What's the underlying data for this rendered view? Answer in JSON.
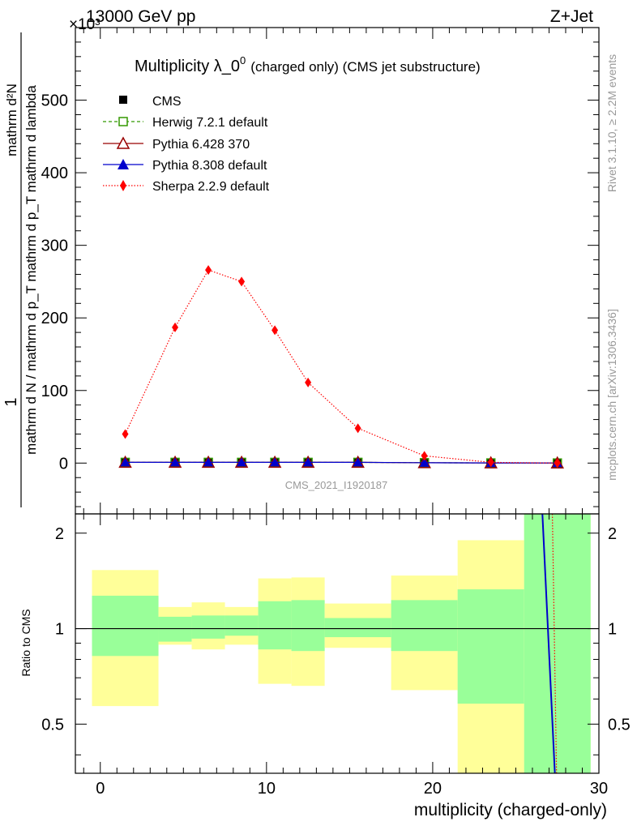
{
  "header": {
    "left": "13000 GeV pp",
    "right": "Z+Jet",
    "exponent": "×10³"
  },
  "title": {
    "main": "Multiplicity λ_0",
    "sup": "0",
    "sub": "(charged only) (CMS jet substructure)"
  },
  "side_labels": {
    "rivet": "Rivet 3.1.10, ≥ 2.2M events",
    "mcplots": "mcplots.cern.ch [arXiv:1306.3436]"
  },
  "watermark": "CMS_2021_I1920187",
  "axes": {
    "y_label_numerator": "1",
    "y_label_denominator": "mathrm d N / mathrm d p_T mathrm d p_T mathrm d lambda",
    "y_label_right": "mathrm d²N",
    "ratio_label": "Ratio to CMS",
    "x_label": "multiplicity (charged-only)"
  },
  "colors": {
    "herwig": "#339900",
    "pythia6": "#990000",
    "pythia8": "#0000cc",
    "sherpa": "#ff0000",
    "band_inner": "#99ff99",
    "band_outer": "#ffff99"
  },
  "chart_data": {
    "type": "line",
    "x_bins": [
      [
        -0.5,
        3.5
      ],
      [
        3.5,
        5.5
      ],
      [
        5.5,
        7.5
      ],
      [
        7.5,
        9.5
      ],
      [
        9.5,
        11.5
      ],
      [
        11.5,
        13.5
      ],
      [
        13.5,
        17.5
      ],
      [
        17.5,
        21.5
      ],
      [
        21.5,
        25.5
      ],
      [
        25.5,
        29.5
      ]
    ],
    "x": [
      1.5,
      4.5,
      6.5,
      8.5,
      10.5,
      12.5,
      15.5,
      19.5,
      23.5,
      27.5
    ],
    "xlim": [
      -1.5,
      30
    ],
    "xticks": [
      0,
      10,
      20,
      30
    ],
    "main": {
      "ylim": [
        -70,
        600
      ],
      "yticks": [
        0,
        100,
        200,
        300,
        400,
        500
      ],
      "yscale_note": "×10³",
      "series": [
        {
          "name": "CMS",
          "marker": "square",
          "values": [
            1,
            1,
            1,
            1,
            1,
            1,
            1,
            0.5,
            0.2,
            0.1
          ]
        },
        {
          "name": "Herwig 7.2.1 default",
          "marker": "open-square",
          "line": "dashed",
          "values": [
            1,
            1,
            1,
            1,
            1,
            1,
            1,
            0.5,
            0.2,
            0.1
          ]
        },
        {
          "name": "Pythia 6.428 370",
          "marker": "open-triangle",
          "line": "solid",
          "values": [
            1,
            1,
            1,
            1,
            1,
            1,
            1,
            0.5,
            0.2,
            0.1
          ]
        },
        {
          "name": "Pythia 8.308 default",
          "marker": "triangle",
          "line": "solid",
          "values": [
            1,
            1,
            1,
            1,
            1,
            1,
            1,
            0.5,
            0.2,
            0.1
          ]
        },
        {
          "name": "Sherpa 2.2.9 default",
          "marker": "diamond",
          "line": "dotted",
          "values": [
            40,
            187,
            266,
            250,
            183,
            111,
            48,
            10,
            1,
            0
          ]
        }
      ]
    },
    "ratio": {
      "ylim": [
        0.35,
        2.3
      ],
      "yticks": [
        0.5,
        1,
        2
      ],
      "inner_band": [
        [
          0.82,
          1.27
        ],
        [
          0.91,
          1.09
        ],
        [
          0.93,
          1.1
        ],
        [
          0.95,
          1.1
        ],
        [
          0.86,
          1.22
        ],
        [
          0.85,
          1.23
        ],
        [
          0.94,
          1.08
        ],
        [
          0.85,
          1.23
        ],
        [
          0.58,
          1.33
        ],
        [
          0.35,
          2.3
        ]
      ],
      "outer_band": [
        [
          0.57,
          1.53
        ],
        [
          0.89,
          1.17
        ],
        [
          0.86,
          1.21
        ],
        [
          0.89,
          1.17
        ],
        [
          0.67,
          1.44
        ],
        [
          0.66,
          1.45
        ],
        [
          0.87,
          1.2
        ],
        [
          0.64,
          1.47
        ],
        [
          0.35,
          1.9
        ],
        [
          0.35,
          2.3
        ]
      ],
      "lines": [
        {
          "name": "Pythia 8.308 default",
          "points": [
            [
              26.6,
              2.3
            ],
            [
              27.35,
              0.35
            ]
          ]
        },
        {
          "name": "Sherpa 2.2.9 default",
          "points": [
            [
              27.2,
              2.3
            ],
            [
              27.45,
              0.35
            ]
          ]
        }
      ]
    }
  }
}
